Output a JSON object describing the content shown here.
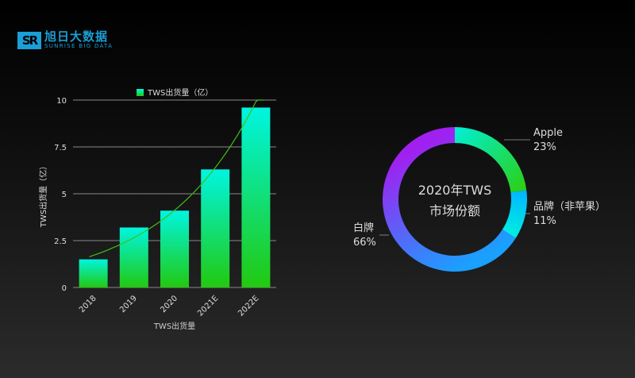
{
  "logo": {
    "cn": "旭日大数据",
    "en": "SUNRISE BIG DATA",
    "mark": "SR"
  },
  "colors": {
    "brand": "#1a9fd6",
    "bar_top": "#00f5e0",
    "bar_bottom": "#22c90f",
    "trend": "#3fbf1a"
  },
  "chart_data": [
    {
      "type": "bar",
      "legend": "TWS出货量（亿）",
      "legend_position": "top",
      "categories": [
        "2018",
        "2019",
        "2020",
        "2021E",
        "2022E"
      ],
      "values": [
        1.5,
        3.2,
        4.1,
        6.3,
        9.6
      ],
      "xlabel": "TWS出货量",
      "ylabel": "TWS出货量（亿）",
      "ylim": [
        0,
        10
      ],
      "yticks": [
        "0",
        "2.5",
        "5",
        "7.5",
        "10"
      ],
      "grid": true,
      "trendline": "exponential"
    },
    {
      "type": "pie",
      "donut": true,
      "center_label": [
        "2020年TWS",
        "市场份额"
      ],
      "slices": [
        {
          "label": "Apple",
          "value": 23,
          "text": "23%",
          "colors": [
            "#00f0d8",
            "#2ccf10"
          ]
        },
        {
          "label": "品牌（非苹果）",
          "value": 11,
          "text": "11%",
          "colors": [
            "#00b4ff",
            "#00f0e0"
          ]
        },
        {
          "label": "白牌",
          "value": 66,
          "text": "66%",
          "colors": [
            "#1aa0ff",
            "#a020f0"
          ]
        }
      ]
    }
  ]
}
